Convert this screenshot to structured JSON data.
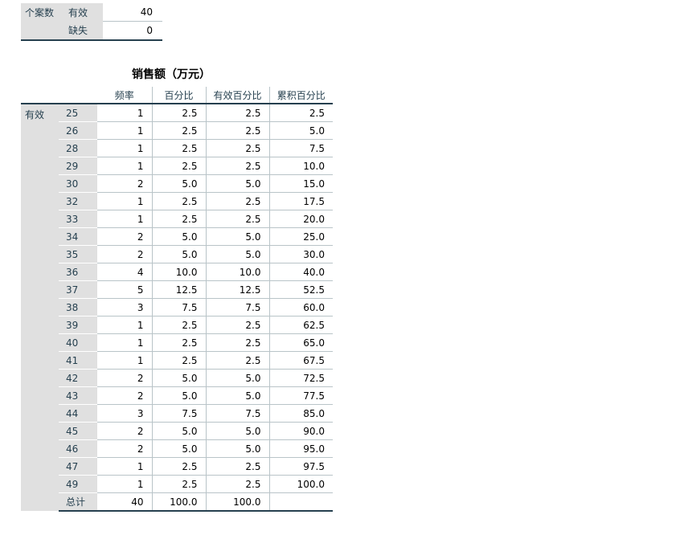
{
  "stats": {
    "n_label": "个案数",
    "valid_label": "有效",
    "valid_value": "40",
    "missing_label": "缺失",
    "missing_value": "0"
  },
  "freq": {
    "title": "销售额（万元）",
    "headers": [
      "频率",
      "百分比",
      "有效百分比",
      "累积百分比"
    ],
    "group_label": "有效",
    "rows": [
      {
        "v": "25",
        "f": "1",
        "p": "2.5",
        "vp": "2.5",
        "cp": "2.5"
      },
      {
        "v": "26",
        "f": "1",
        "p": "2.5",
        "vp": "2.5",
        "cp": "5.0"
      },
      {
        "v": "28",
        "f": "1",
        "p": "2.5",
        "vp": "2.5",
        "cp": "7.5"
      },
      {
        "v": "29",
        "f": "1",
        "p": "2.5",
        "vp": "2.5",
        "cp": "10.0"
      },
      {
        "v": "30",
        "f": "2",
        "p": "5.0",
        "vp": "5.0",
        "cp": "15.0"
      },
      {
        "v": "32",
        "f": "1",
        "p": "2.5",
        "vp": "2.5",
        "cp": "17.5"
      },
      {
        "v": "33",
        "f": "1",
        "p": "2.5",
        "vp": "2.5",
        "cp": "20.0"
      },
      {
        "v": "34",
        "f": "2",
        "p": "5.0",
        "vp": "5.0",
        "cp": "25.0"
      },
      {
        "v": "35",
        "f": "2",
        "p": "5.0",
        "vp": "5.0",
        "cp": "30.0"
      },
      {
        "v": "36",
        "f": "4",
        "p": "10.0",
        "vp": "10.0",
        "cp": "40.0"
      },
      {
        "v": "37",
        "f": "5",
        "p": "12.5",
        "vp": "12.5",
        "cp": "52.5"
      },
      {
        "v": "38",
        "f": "3",
        "p": "7.5",
        "vp": "7.5",
        "cp": "60.0"
      },
      {
        "v": "39",
        "f": "1",
        "p": "2.5",
        "vp": "2.5",
        "cp": "62.5"
      },
      {
        "v": "40",
        "f": "1",
        "p": "2.5",
        "vp": "2.5",
        "cp": "65.0"
      },
      {
        "v": "41",
        "f": "1",
        "p": "2.5",
        "vp": "2.5",
        "cp": "67.5"
      },
      {
        "v": "42",
        "f": "2",
        "p": "5.0",
        "vp": "5.0",
        "cp": "72.5"
      },
      {
        "v": "43",
        "f": "2",
        "p": "5.0",
        "vp": "5.0",
        "cp": "77.5"
      },
      {
        "v": "44",
        "f": "3",
        "p": "7.5",
        "vp": "7.5",
        "cp": "85.0"
      },
      {
        "v": "45",
        "f": "2",
        "p": "5.0",
        "vp": "5.0",
        "cp": "90.0"
      },
      {
        "v": "46",
        "f": "2",
        "p": "5.0",
        "vp": "5.0",
        "cp": "95.0"
      },
      {
        "v": "47",
        "f": "1",
        "p": "2.5",
        "vp": "2.5",
        "cp": "97.5"
      },
      {
        "v": "49",
        "f": "1",
        "p": "2.5",
        "vp": "2.5",
        "cp": "100.0"
      }
    ],
    "total": {
      "label": "总计",
      "f": "40",
      "p": "100.0",
      "vp": "100.0",
      "cp": ""
    }
  }
}
